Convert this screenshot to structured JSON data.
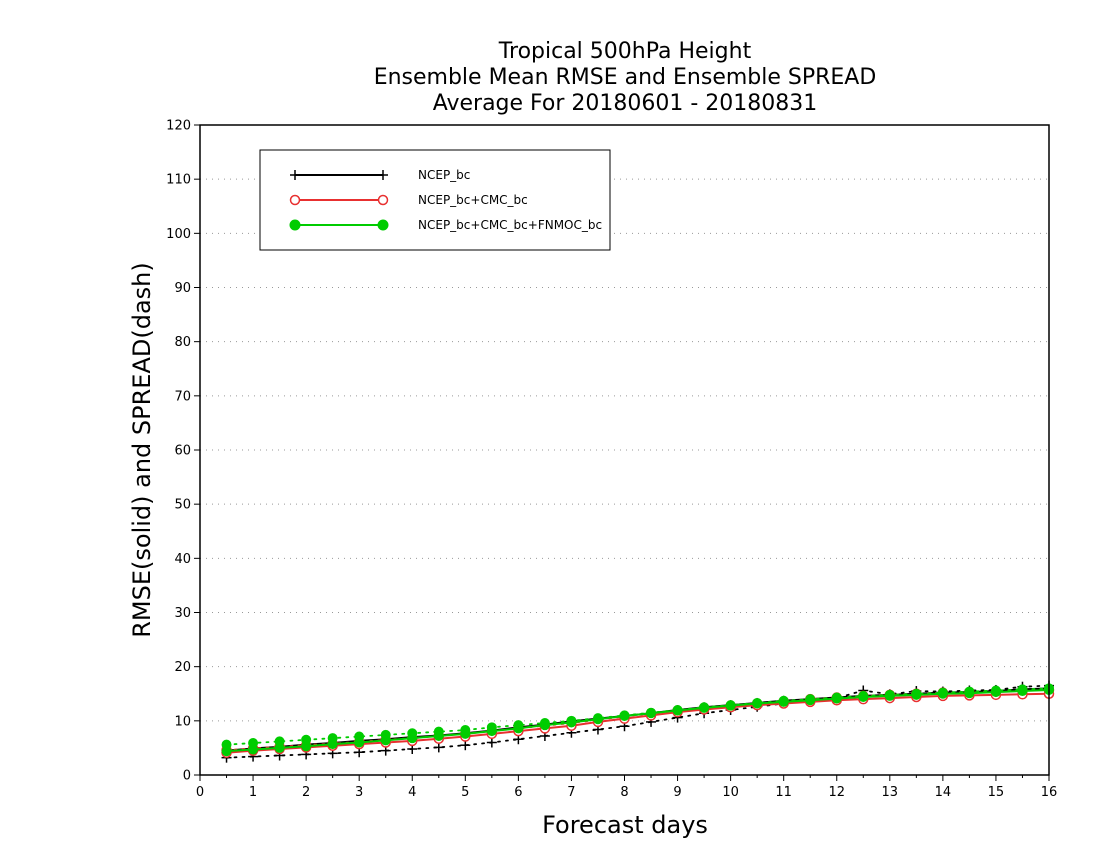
{
  "chart_data": {
    "type": "line",
    "title": [
      "Tropical 500hPa Height",
      "Ensemble Mean RMSE and Ensemble SPREAD",
      "Average For 20180601 - 20180831"
    ],
    "xlabel": "Forecast days",
    "ylabel": "RMSE(solid) and SPREAD(dash)",
    "xlim": [
      0,
      16
    ],
    "ylim": [
      0,
      120
    ],
    "xticks": [
      0,
      1,
      2,
      3,
      4,
      5,
      6,
      7,
      8,
      9,
      10,
      11,
      12,
      13,
      14,
      15,
      16
    ],
    "yticks": [
      0,
      10,
      20,
      30,
      40,
      50,
      60,
      70,
      80,
      90,
      100,
      110,
      120
    ],
    "grid": "horizontal dotted",
    "legend_position": "top-left",
    "x": [
      0.5,
      1,
      1.5,
      2,
      2.5,
      3,
      3.5,
      4,
      4.5,
      5,
      5.5,
      6,
      6.5,
      7,
      7.5,
      8,
      8.5,
      9,
      9.5,
      10,
      10.5,
      11,
      11.5,
      12,
      12.5,
      13,
      13.5,
      14,
      14.5,
      15,
      15.5,
      16
    ],
    "series": [
      {
        "name": "NCEP_bc",
        "color": "#000000",
        "marker": "plus",
        "rmse": [
          4.5,
          4.9,
          5.2,
          5.6,
          5.9,
          6.3,
          6.6,
          7.0,
          7.3,
          7.7,
          8.2,
          8.8,
          9.3,
          9.9,
          10.4,
          10.9,
          11.4,
          12.0,
          12.5,
          12.9,
          13.3,
          13.7,
          14.0,
          14.3,
          14.6,
          14.8,
          15.0,
          15.2,
          15.3,
          15.5,
          15.8,
          16.0
        ],
        "spread": [
          3.2,
          3.4,
          3.6,
          3.8,
          4.0,
          4.2,
          4.5,
          4.8,
          5.1,
          5.5,
          6.0,
          6.6,
          7.2,
          7.8,
          8.4,
          9.0,
          9.8,
          10.6,
          11.4,
          12.0,
          12.6,
          13.2,
          13.8,
          14.2,
          15.6,
          14.9,
          15.5,
          15.4,
          15.6,
          15.7,
          16.3,
          16.5
        ]
      },
      {
        "name": "NCEP_bc+CMC_bc",
        "color": "#e83030",
        "marker": "open-circle",
        "rmse": [
          4.1,
          4.5,
          4.8,
          5.1,
          5.4,
          5.7,
          6.0,
          6.3,
          6.7,
          7.1,
          7.6,
          8.1,
          8.6,
          9.1,
          9.8,
          10.4,
          11.0,
          11.6,
          12.1,
          12.5,
          12.9,
          13.2,
          13.5,
          13.8,
          14.0,
          14.2,
          14.4,
          14.6,
          14.7,
          14.8,
          14.9,
          15.0
        ],
        "spread": [
          4.6,
          4.9,
          5.2,
          5.5,
          5.8,
          6.1,
          6.5,
          6.8,
          7.2,
          7.6,
          8.1,
          8.6,
          9.1,
          9.6,
          10.2,
          10.8,
          11.4,
          11.9,
          12.4,
          12.8,
          13.2,
          13.6,
          14.0,
          14.3,
          14.6,
          14.8,
          15.0,
          15.2,
          15.3,
          15.4,
          15.6,
          15.7
        ]
      },
      {
        "name": "NCEP_bc+CMC_bc+FNMOC_bc",
        "color": "#00cc00",
        "marker": "filled-circle",
        "rmse": [
          4.4,
          4.7,
          5.0,
          5.3,
          5.7,
          6.0,
          6.4,
          6.8,
          7.2,
          7.6,
          8.1,
          8.6,
          9.2,
          9.7,
          10.3,
          10.9,
          11.4,
          11.9,
          12.4,
          12.8,
          13.2,
          13.5,
          13.8,
          14.1,
          14.4,
          14.6,
          14.8,
          15.0,
          15.1,
          15.3,
          15.5,
          15.7
        ],
        "spread": [
          5.6,
          5.9,
          6.2,
          6.5,
          6.8,
          7.1,
          7.4,
          7.7,
          8.0,
          8.3,
          8.8,
          9.2,
          9.6,
          10.0,
          10.5,
          11.0,
          11.5,
          12.0,
          12.5,
          12.9,
          13.3,
          13.7,
          14.0,
          14.3,
          14.6,
          14.8,
          15.0,
          15.2,
          15.4,
          15.6,
          15.8,
          16.0
        ]
      }
    ]
  }
}
